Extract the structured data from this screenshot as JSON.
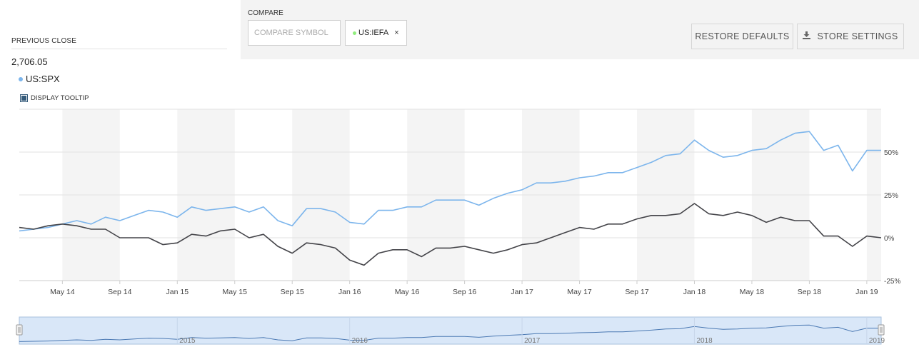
{
  "header": {
    "previous_close_label": "PREVIOUS CLOSE",
    "previous_close_value": "2,706.05",
    "symbol": "US:SPX",
    "symbol_color": "#7cb5ec",
    "display_tooltip_label": "DISPLAY TOOLTIP"
  },
  "compare": {
    "label": "COMPARE",
    "input_placeholder": "COMPARE SYMBOL",
    "chip_symbol": "US:IEFA",
    "chip_color": "#90ed7d",
    "chip_close": "×"
  },
  "buttons": {
    "restore_defaults": "RESTORE DEFAULTS",
    "store_settings": "STORE SETTINGS"
  },
  "chart_data": {
    "type": "line",
    "x_start": "2014-02",
    "x_step": "1 month",
    "x_tick_labels": [
      "May 14",
      "Sep 14",
      "Jan 15",
      "May 15",
      "Sep 15",
      "Jan 16",
      "May 16",
      "Sep 16",
      "Jan 17",
      "May 17",
      "Sep 17",
      "Jan 18",
      "May 18",
      "Sep 18",
      "Jan 19"
    ],
    "y_tick_labels": [
      "50%",
      "25%",
      "0%",
      "-25%"
    ],
    "y_ticks": [
      50,
      25,
      0,
      -25
    ],
    "ylim": [
      -25,
      75
    ],
    "grid": true,
    "series": [
      {
        "name": "US:SPX",
        "color": "#7cb5ec",
        "values": [
          4,
          5,
          6,
          8,
          10,
          8,
          12,
          10,
          13,
          16,
          15,
          12,
          18,
          16,
          17,
          18,
          15,
          18,
          10,
          7,
          17,
          17,
          15,
          9,
          8,
          16,
          16,
          18,
          18,
          22,
          22,
          22,
          19,
          23,
          26,
          28,
          32,
          32,
          33,
          35,
          36,
          38,
          38,
          41,
          44,
          48,
          49,
          57,
          51,
          47,
          48,
          51,
          52,
          57,
          61,
          62,
          51,
          54,
          39,
          51,
          51
        ],
        "last_value": 51
      },
      {
        "name": "US:IEFA",
        "color": "#434348",
        "values": [
          6,
          5,
          7,
          8,
          7,
          5,
          5,
          0,
          0,
          0,
          -4,
          -3,
          2,
          1,
          4,
          5,
          0,
          2,
          -5,
          -9,
          -3,
          -4,
          -6,
          -13,
          -16,
          -9,
          -7,
          -7,
          -11,
          -6,
          -6,
          -5,
          -7,
          -9,
          -7,
          -4,
          -3,
          0,
          3,
          6,
          5,
          8,
          8,
          11,
          13,
          13,
          14,
          20,
          14,
          13,
          15,
          13,
          9,
          12,
          10,
          10,
          1,
          1,
          -5,
          1,
          0
        ],
        "last_value": 0
      }
    ],
    "navigator": {
      "year_labels": [
        "2015",
        "2016",
        "2017",
        "2018",
        "2019"
      ]
    }
  }
}
